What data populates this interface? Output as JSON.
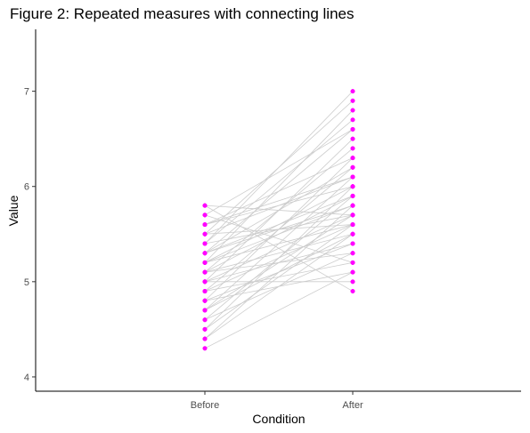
{
  "chart_data": {
    "type": "scatter",
    "title": "Figure 2: Repeated measures with connecting lines",
    "xlabel": "Condition",
    "ylabel": "Value",
    "categories": [
      "Before",
      "After"
    ],
    "ylim": [
      3.85,
      7.65
    ],
    "y_ticks": [
      4,
      5,
      6,
      7
    ],
    "grid": false,
    "legend": "none",
    "point_color": "#ff00ff",
    "line_color": "#cccccc",
    "pairs": [
      [
        4.3,
        5.1
      ],
      [
        4.4,
        5.5
      ],
      [
        4.4,
        5.8
      ],
      [
        4.5,
        5.6
      ],
      [
        4.5,
        6.0
      ],
      [
        4.6,
        5.3
      ],
      [
        4.6,
        5.9
      ],
      [
        4.7,
        5.7
      ],
      [
        4.7,
        6.1
      ],
      [
        4.8,
        5.4
      ],
      [
        4.8,
        6.3
      ],
      [
        4.9,
        5.6
      ],
      [
        4.9,
        5.2
      ],
      [
        4.9,
        6.2
      ],
      [
        5.0,
        5.7
      ],
      [
        5.0,
        6.5
      ],
      [
        5.0,
        5.0
      ],
      [
        5.1,
        5.9
      ],
      [
        5.1,
        6.4
      ],
      [
        5.1,
        5.5
      ],
      [
        5.2,
        6.0
      ],
      [
        5.2,
        6.8
      ],
      [
        5.2,
        5.6
      ],
      [
        5.3,
        6.6
      ],
      [
        5.3,
        5.8
      ],
      [
        5.3,
        6.2
      ],
      [
        5.4,
        7.0
      ],
      [
        5.4,
        5.7
      ],
      [
        5.4,
        6.7
      ],
      [
        5.5,
        6.9
      ],
      [
        5.5,
        5.6
      ],
      [
        5.5,
        6.1
      ],
      [
        5.6,
        6.0
      ],
      [
        5.6,
        6.3
      ],
      [
        5.7,
        5.2
      ],
      [
        5.7,
        6.6
      ],
      [
        5.8,
        4.9
      ],
      [
        5.8,
        5.7
      ],
      [
        5.0,
        5.4
      ],
      [
        5.2,
        5.8
      ],
      [
        4.8,
        5.1
      ],
      [
        5.3,
        5.9
      ],
      [
        5.6,
        6.1
      ],
      [
        5.1,
        5.3
      ],
      [
        4.7,
        5.5
      ]
    ]
  }
}
